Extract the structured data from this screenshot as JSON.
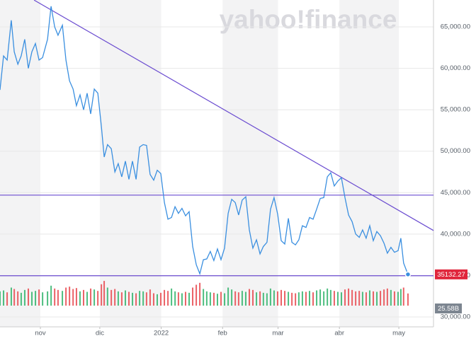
{
  "chart_data": {
    "type": "line",
    "watermark": "yahoo!finance",
    "x": [
      -20.4,
      -18.6,
      -16.8,
      -14.7,
      -13.2,
      -11.4,
      -9.7,
      -7.9,
      -6.1,
      -4.3,
      -2.5,
      -0.7,
      1.1,
      3.6,
      5.4,
      7.2,
      8.9,
      11.1,
      12.9,
      14.7,
      16.5,
      18.2,
      20,
      21.8,
      23.6,
      25.4,
      27.2,
      29,
      30.8,
      32.2,
      33.9,
      35.8,
      37.6,
      39.3,
      41.1,
      42.9,
      44.7,
      46.5,
      48.3,
      50.1,
      51.9,
      53.6,
      55.4,
      57.2,
      59,
      60.8,
      62.6,
      64.4,
      66.2,
      68,
      69.7,
      71.5,
      73.3,
      75.1,
      76.9,
      78.7,
      80.5,
      82.3,
      84,
      85.8,
      87.6,
      89.4,
      91.2,
      93,
      94.8,
      96.6,
      98.4,
      100.1,
      101.9,
      103.7,
      105.5,
      107.3,
      109.1,
      110.9,
      112.6,
      114.4,
      116.2,
      118,
      119.8,
      121.6,
      123.4,
      125.2,
      127,
      128.8,
      130.5,
      132.3,
      134.1,
      135.9,
      137.7,
      139.5,
      141.3,
      143.1,
      144.9,
      146.6,
      148.4,
      150.2,
      152,
      153.8,
      155.6,
      157.4,
      159.2,
      161,
      162.7,
      164.5,
      166.3,
      168.1,
      169.9,
      171.7,
      173.5,
      175.2,
      177,
      178.8,
      180.6,
      182,
      183.4,
      185.6
    ],
    "series": [
      {
        "color": "#3a8fe0",
        "values": [
          57400,
          61500,
          61000,
          65800,
          62000,
          60500,
          61500,
          63500,
          60000,
          62000,
          63000,
          61000,
          61300,
          63500,
          67500,
          65000,
          64000,
          65200,
          61000,
          58500,
          57500,
          55500,
          56800,
          55000,
          57000,
          54500,
          57500,
          57000,
          53000,
          49300,
          50800,
          50300,
          47500,
          48500,
          46900,
          48800,
          46600,
          48800,
          46600,
          50500,
          50800,
          50700,
          47200,
          46500,
          47700,
          47300,
          43800,
          41800,
          42000,
          43300,
          42500,
          43100,
          42200,
          42700,
          38500,
          36300,
          35200,
          36900,
          37000,
          37900,
          36800,
          38200,
          36900,
          38300,
          42500,
          44200,
          43800,
          42300,
          44100,
          44500,
          40500,
          38300,
          39300,
          37600,
          38500,
          39000,
          43000,
          44400,
          42400,
          39200,
          38800,
          41900,
          39000,
          38700,
          39300,
          41000,
          40800,
          42000,
          41800,
          43000,
          44300,
          44400,
          46900,
          47400,
          45800,
          46400,
          46800,
          44400,
          42300,
          41500,
          40000,
          39600,
          40500,
          39500,
          41000,
          39200,
          40300,
          39800,
          38900,
          37700,
          38400,
          37800,
          38000,
          39500,
          36500,
          35132.27
        ]
      },
      {
        "axis": "y2",
        "up_color": "#2fb36a",
        "down_color": "#e8474c",
        "values": [
          30,
          32,
          28,
          38,
          35,
          30,
          27,
          33,
          36,
          29,
          31,
          34,
          28,
          30,
          42,
          36,
          33,
          31,
          38,
          40,
          35,
          37,
          30,
          33,
          29,
          36,
          34,
          31,
          45,
          52,
          38,
          33,
          35,
          30,
          28,
          32,
          29,
          27,
          26,
          31,
          30,
          28,
          34,
          26,
          24,
          27,
          33,
          31,
          36,
          30,
          28,
          26,
          29,
          27,
          38,
          44,
          48,
          35,
          30,
          28,
          27,
          25,
          29,
          26,
          38,
          34,
          30,
          28,
          31,
          29,
          35,
          33,
          28,
          30,
          27,
          26,
          36,
          32,
          30,
          33,
          31,
          29,
          27,
          26,
          28,
          30,
          29,
          31,
          28,
          32,
          34,
          30,
          36,
          33,
          31,
          29,
          28,
          34,
          36,
          33,
          30,
          31,
          29,
          28,
          32,
          30,
          29,
          31,
          34,
          36,
          33,
          30,
          29,
          35,
          38,
          25.58
        ]
      }
    ],
    "volume_tag": {
      "value": 25.58,
      "label": "25.58B"
    },
    "price_tag_color": "#e0263c",
    "trend_color": "#6a4bd0",
    "trendlines": [
      {
        "x": [
          -3.2,
          198.5
        ],
        "values": [
          68240,
          40430
        ]
      }
    ],
    "hlines": [
      44700,
      34970
    ],
    "xlim": [
      -20.4,
      198.5
    ],
    "xticks": [
      {
        "value": 0,
        "label": "nov"
      },
      {
        "value": 30,
        "label": "dic"
      },
      {
        "value": 61,
        "label": "2022"
      },
      {
        "value": 92,
        "label": "feb"
      },
      {
        "value": 120,
        "label": "mar"
      },
      {
        "value": 151,
        "label": "abr"
      },
      {
        "value": 181,
        "label": "may"
      }
    ],
    "ylim": [
      28800,
      68250
    ],
    "yticks": [
      {
        "value": 30000,
        "label": "30,000.00"
      },
      {
        "value": 35000,
        "label": "35,000.00"
      },
      {
        "value": 40000,
        "label": "40,000.00"
      },
      {
        "value": 45000,
        "label": "45,000.00"
      },
      {
        "value": 50000,
        "label": "50,000.00"
      },
      {
        "value": 55000,
        "label": "55,000.00"
      },
      {
        "value": 60000,
        "label": "60,000.00"
      },
      {
        "value": 65000,
        "label": "65,000.00"
      }
    ],
    "y2lim": [
      0,
      70
    ],
    "grid": true
  }
}
